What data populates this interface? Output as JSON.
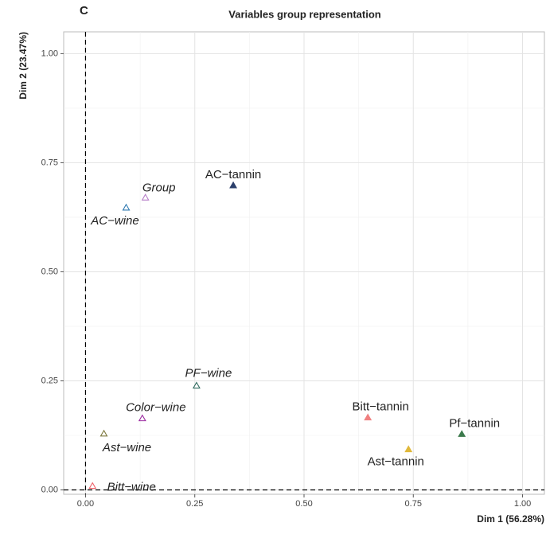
{
  "panel_label": "C",
  "chart_data": {
    "type": "scatter",
    "title": "Variables group representation",
    "x_label": "Dim 1 (56.28%)",
    "y_label": "Dim 2 (23.47%)",
    "xlim": [
      -0.05,
      1.05
    ],
    "ylim": [
      -0.01,
      1.05
    ],
    "xticks": [
      {
        "value": 0,
        "label": "0.00"
      },
      {
        "value": 0.25,
        "label": "0.25"
      },
      {
        "value": 0.5,
        "label": "0.50"
      },
      {
        "value": 0.75,
        "label": "0.75"
      },
      {
        "value": 1,
        "label": "1.00"
      }
    ],
    "yticks": [
      {
        "value": 0,
        "label": "0.00"
      },
      {
        "value": 0.25,
        "label": "0.25"
      },
      {
        "value": 0.5,
        "label": "0.50"
      },
      {
        "value": 0.75,
        "label": "0.75"
      },
      {
        "value": 1,
        "label": "1.00"
      }
    ],
    "grid": true,
    "minor_grid": true,
    "hline": 0,
    "vline": 0,
    "series": [
      {
        "name": "AC−tannin",
        "color": "#2b3f6b",
        "marker": "filled",
        "font_style": "normal",
        "x": [
          0.338
        ],
        "values": [
          0.698
        ]
      },
      {
        "name": "Group",
        "color": "#b57cc7",
        "marker": "open",
        "font_style": "italic",
        "x": [
          0.137
        ],
        "values": [
          0.67
        ]
      },
      {
        "name": "AC−wine",
        "color": "#2e78b0",
        "marker": "open",
        "font_style": "italic",
        "x": [
          0.093
        ],
        "values": [
          0.647
        ]
      },
      {
        "name": "PF−wine",
        "color": "#2e6a5e",
        "marker": "open",
        "font_style": "italic",
        "x": [
          0.254
        ],
        "values": [
          0.239
        ]
      },
      {
        "name": "Color−wine",
        "color": "#9b2aa0",
        "marker": "open",
        "font_style": "italic",
        "x": [
          0.13
        ],
        "values": [
          0.164
        ]
      },
      {
        "name": "Ast−wine",
        "color": "#7f7a3f",
        "marker": "open",
        "font_style": "italic",
        "x": [
          0.042
        ],
        "values": [
          0.129
        ]
      },
      {
        "name": "Bitt−wine",
        "color": "#f0636b",
        "marker": "open",
        "font_style": "italic",
        "x": [
          0.016
        ],
        "values": [
          0.009
        ]
      },
      {
        "name": "Bitt−tannin",
        "color": "#f08080",
        "marker": "filled",
        "font_style": "normal",
        "x": [
          0.646
        ],
        "values": [
          0.166
        ]
      },
      {
        "name": "Ast−tannin",
        "color": "#e0b83a",
        "marker": "filled",
        "font_style": "normal",
        "x": [
          0.739
        ],
        "values": [
          0.093
        ]
      },
      {
        "name": "Pf−tannin",
        "color": "#3c7a4c",
        "marker": "filled",
        "font_style": "normal",
        "x": [
          0.861
        ],
        "values": [
          0.128
        ]
      }
    ]
  }
}
